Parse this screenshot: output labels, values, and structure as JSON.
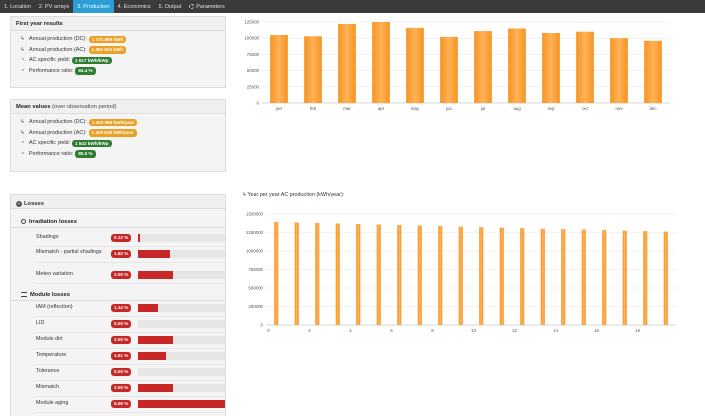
{
  "nav": {
    "tabs": [
      {
        "label": "1. Location"
      },
      {
        "label": "2. PV arrays"
      },
      {
        "label": "3. Production",
        "active": true
      },
      {
        "label": "4. Economics"
      },
      {
        "label": "5. Output"
      },
      {
        "label": "Parameters",
        "icon": "gear-icon"
      }
    ]
  },
  "first_year": {
    "title": "First year results",
    "rows": [
      {
        "label": "Annual production (DC):",
        "value": "1 471 859 kWh",
        "icon": "bolt-icon",
        "color": "orange"
      },
      {
        "label": "Annual production (AC):",
        "value": "1 392 934 kWh",
        "icon": "bolt-icon",
        "color": "orange"
      },
      {
        "label": "AC specific yield:",
        "value": "1 617 kWh/kWp",
        "icon": "dashboard-icon",
        "color": "green"
      },
      {
        "label": "Performance ratio:",
        "value": "84.4 %",
        "icon": "dashboard-icon",
        "color": "green"
      }
    ]
  },
  "mean_values": {
    "title": "Mean values",
    "subtitle": "(over observation period)",
    "rows": [
      {
        "label": "Annual production (DC):",
        "value": "1 403 999 kWh/year",
        "icon": "bolt-icon",
        "color": "orange"
      },
      {
        "label": "Annual production (AC):",
        "value": "1 328 618 kWh/year",
        "icon": "bolt-icon",
        "color": "orange"
      },
      {
        "label": "AC specific yield:",
        "value": "1 542 kWh/kWp",
        "icon": "dashboard-icon",
        "color": "green"
      },
      {
        "label": "Performance ratio:",
        "value": "80.5 %",
        "icon": "dashboard-icon",
        "color": "green"
      }
    ]
  },
  "losses": {
    "title": "Losses",
    "irradiation_title": "Irradiation losses",
    "module_title": "Module losses",
    "irradiation": [
      {
        "label": "Shadings",
        "value": "0.12 %",
        "fraction": 0.02
      },
      {
        "label": "Mismatch - partial shadings",
        "value": "1.82 %",
        "fraction": 0.36
      },
      {
        "label": "Meteo variation",
        "value": "2.00 %",
        "fraction": 0.39
      }
    ],
    "module": [
      {
        "label": "IAM (reflection)",
        "value": "1.14 %",
        "fraction": 0.22
      },
      {
        "label": "LID",
        "value": "0.00 %",
        "fraction": 0.0
      },
      {
        "label": "Module dirt",
        "value": "2.00 %",
        "fraction": 0.39
      },
      {
        "label": "Temperature",
        "value": "1.61 %",
        "fraction": 0.32
      },
      {
        "label": "Tolerance",
        "value": "0.00 %",
        "fraction": 0.0
      },
      {
        "label": "Mismatch",
        "value": "2.00 %",
        "fraction": 0.39
      },
      {
        "label": "Module aging",
        "value": "5.09 %",
        "fraction": 1.0
      }
    ]
  },
  "yearly_chart_title": "Year per year AC production (kWh/year):",
  "colors": {
    "bar": "#f7931e",
    "bar_light": "#ffb25a",
    "nav_active": "#2a9fd6",
    "loss": "#c62828"
  },
  "chart_data": [
    {
      "type": "bar",
      "categories": [
        "jan",
        "feb",
        "mar",
        "apr",
        "may",
        "jun",
        "jul",
        "aug",
        "sep",
        "oct",
        "nov",
        "dec"
      ],
      "values": [
        105000,
        103000,
        122000,
        125000,
        116000,
        102000,
        111000,
        115000,
        108000,
        110000,
        100000,
        96000
      ],
      "yticks": [
        0,
        25000,
        50000,
        75000,
        100000,
        125000
      ],
      "ylim": [
        0,
        125000
      ]
    },
    {
      "type": "bar",
      "categories": [
        0,
        1,
        2,
        3,
        4,
        5,
        6,
        7,
        8,
        9,
        10,
        11,
        12,
        13,
        14,
        15,
        16,
        17,
        18,
        19
      ],
      "values": [
        1392934,
        1386000,
        1379000,
        1372000,
        1365000,
        1358000,
        1351000,
        1344000,
        1337000,
        1330000,
        1323000,
        1316000,
        1309000,
        1302000,
        1296000,
        1289000,
        1282000,
        1276000,
        1269000,
        1262000
      ],
      "xticks": [
        0,
        2,
        4,
        6,
        8,
        10,
        12,
        14,
        16,
        18
      ],
      "yticks": [
        0,
        250000,
        500000,
        750000,
        1000000,
        1250000,
        1500000
      ],
      "ylim": [
        0,
        1500000
      ]
    }
  ]
}
